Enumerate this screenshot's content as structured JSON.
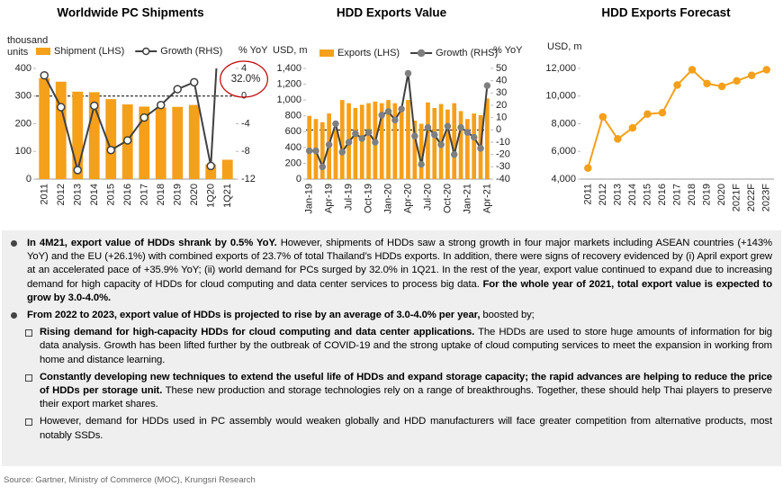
{
  "chart_data": [
    {
      "type": "combo",
      "title": "Worldwide PC Shipments",
      "ylabel": [
        "thousand",
        "units"
      ],
      "y2label": "% YoY",
      "categories": [
        "2011",
        "2012",
        "2013",
        "2014",
        "2015",
        "2016",
        "2017",
        "2018",
        "2019",
        "2020",
        "1Q20",
        "1Q21"
      ],
      "series": [
        {
          "name": "Shipment (LHS)",
          "type": "bar",
          "color": "#f5a01a",
          "values": [
            365,
            352,
            316,
            314,
            289,
            270,
            262,
            259,
            261,
            268,
            53,
            70
          ]
        },
        {
          "name": "Growth (RHS)",
          "type": "line",
          "axis": "y2",
          "color": "#404040",
          "marker_fill": "#ffffff",
          "values": [
            3.0,
            -1.6,
            -10.7,
            -1.4,
            -7.8,
            -6.4,
            -3.1,
            -1.3,
            1.0,
            2.0,
            -10.1,
            32.0
          ],
          "value_labels": [
            null,
            null,
            null,
            null,
            null,
            null,
            null,
            null,
            null,
            null,
            null,
            "32.0%"
          ]
        }
      ],
      "ylim": [
        0,
        400
      ],
      "yticks": [
        0,
        100,
        200,
        300,
        400
      ],
      "y2lim": [
        -12,
        4
      ],
      "y2ticks": [
        -12,
        -8,
        -4,
        0,
        4
      ],
      "y2_zero_line": true,
      "highlight_color": "#c00000"
    },
    {
      "type": "combo",
      "title": "HDD Exports Value",
      "ylabel": "USD, m",
      "y2label": "% YoY",
      "categories": [
        "Jan-19",
        null,
        null,
        "Apr-19",
        null,
        null,
        "Jul-19",
        null,
        null,
        "Oct-19",
        null,
        null,
        "Jan-20",
        null,
        null,
        "Apr-20",
        null,
        null,
        "Jul-20",
        null,
        null,
        "Oct-20",
        null,
        null,
        "Jan-21",
        null,
        null,
        "Apr-21"
      ],
      "series": [
        {
          "name": "Exports (LHS)",
          "type": "bar",
          "color": "#f5a01a",
          "values": [
            800,
            760,
            720,
            830,
            640,
            1000,
            960,
            900,
            940,
            960,
            980,
            960,
            1000,
            960,
            870,
            1000,
            740,
            700,
            970,
            900,
            950,
            880,
            960,
            860,
            760,
            830,
            810,
            1020
          ]
        },
        {
          "name": "Growth (RHS)",
          "type": "line",
          "axis": "y2",
          "color": "#404040",
          "marker_fill": "#7f7f7f",
          "values": [
            -17,
            -17,
            -30,
            -12,
            5,
            -18,
            -10,
            -3,
            -7,
            -2,
            -10,
            12,
            15,
            8,
            17,
            46,
            -5,
            -28,
            2,
            -4,
            -12,
            3,
            -20,
            2,
            -2,
            -6,
            -15,
            36
          ]
        }
      ],
      "ylim": [
        0,
        1400
      ],
      "yticks": [
        0,
        200,
        400,
        600,
        800,
        {
          "value": 1000,
          "label": "1,000"
        },
        {
          "value": 1200,
          "label": "1,200"
        },
        {
          "value": 1400,
          "label": "1,400"
        }
      ],
      "y2lim": [
        -40,
        50
      ],
      "y2ticks": [
        -40,
        -30,
        -20,
        -10,
        0,
        10,
        20,
        30,
        40,
        50
      ],
      "y2_zero_line": true
    },
    {
      "type": "line",
      "title": "HDD Exports Forecast",
      "ylabel": "USD, m",
      "color": "#f5a01a",
      "categories": [
        "2011",
        "2012",
        "2013",
        "2014",
        "2015",
        "2016",
        "2017",
        "2018",
        "2019",
        "2020",
        "2021F",
        "2022F",
        "2023F"
      ],
      "values": [
        4800,
        8500,
        6900,
        7700,
        8700,
        8800,
        10800,
        11900,
        10900,
        10700,
        11100,
        11500,
        11900
      ],
      "ylim": [
        4000,
        12000
      ],
      "yticks": [
        {
          "value": 4000,
          "label": "4,000"
        },
        {
          "value": 6000,
          "label": "6,000"
        },
        {
          "value": 8000,
          "label": "8,000"
        },
        {
          "value": 10000,
          "label": "10,000"
        },
        {
          "value": 12000,
          "label": "12,000"
        }
      ]
    }
  ],
  "text": {
    "bullets": [
      {
        "parts": [
          {
            "text": "In 4M21, export value of HDDs shrank by 0.5% YoY.",
            "bold": true
          },
          {
            "text": " However, shipments of HDDs saw a strong growth in four major markets including ASEAN countries (+143% YoY) and the EU (+26.1%) with combined exports of 23.7% of total Thailand’s HDDs exports. In addition, there were signs of recovery evidenced by (i) April export grew at an accelerated pace of +35.9% YoY; (ii) world demand for PCs surged by 32.0% in 1Q21. In the rest of the year, export value continued to expand due to increasing demand for high capacity of HDDs for cloud computing and data center services to process big data. ",
            "bold": false
          },
          {
            "text": "For the whole year of 2021, total export value is expected to grow by 3.0-4.0%.",
            "bold": true
          }
        ]
      },
      {
        "parts": [
          {
            "text": "From 2022 to 2023, export value of HDDs is projected to rise by an average of 3.0-4.0% per year,",
            "bold": true
          },
          {
            "text": " boosted by;",
            "bold": false
          }
        ],
        "sub": [
          {
            "parts": [
              {
                "text": "Rising demand for high-capacity HDDs for cloud computing and data center applications.",
                "bold": true
              },
              {
                "text": " The HDDs are used to store huge amounts of information for big data analysis. Growth has been lifted further by the outbreak of COVID-19 and the strong uptake of cloud computing services to meet the expansion in working from home and distance learning.",
                "bold": false
              }
            ]
          },
          {
            "parts": [
              {
                "text": "Constantly developing new techniques to extend the useful life of HDDs and expand storage capacity; the rapid advances are helping to reduce the price of HDDs per storage unit.",
                "bold": true
              },
              {
                "text": " These new production and storage technologies rely on a range of breakthroughs. Together, these should help Thai players to preserve their export market shares.",
                "bold": false
              }
            ]
          },
          {
            "parts": [
              {
                "text": "However, demand for HDDs used in PC assembly would weaken globally and HDD manufacturers will face greater competition from alternative products, most notably SSDs.",
                "bold": false
              }
            ]
          }
        ]
      }
    ],
    "source": "Source: Gartner, Ministry of Commerce (MOC), Krungsri Research"
  }
}
